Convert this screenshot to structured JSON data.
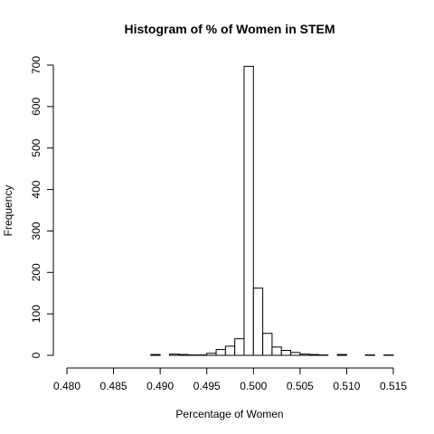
{
  "chart_data": {
    "type": "bar",
    "title": "Histogram of % of Women in STEM",
    "xlabel": "Percentage of Women",
    "ylabel": "Frequency",
    "xlim": [
      0.48,
      0.515
    ],
    "ylim": [
      0,
      700
    ],
    "x_ticks": [
      "0.480",
      "0.485",
      "0.490",
      "0.495",
      "0.500",
      "0.505",
      "0.510",
      "0.515"
    ],
    "y_ticks": [
      "0",
      "100",
      "200",
      "300",
      "400",
      "500",
      "600",
      "700"
    ],
    "bins": [
      {
        "x0": 0.48,
        "x1": 0.481,
        "count": 0
      },
      {
        "x0": 0.481,
        "x1": 0.482,
        "count": 0
      },
      {
        "x0": 0.482,
        "x1": 0.483,
        "count": 0
      },
      {
        "x0": 0.483,
        "x1": 0.484,
        "count": 0
      },
      {
        "x0": 0.484,
        "x1": 0.485,
        "count": 0
      },
      {
        "x0": 0.485,
        "x1": 0.486,
        "count": 0
      },
      {
        "x0": 0.486,
        "x1": 0.487,
        "count": 0
      },
      {
        "x0": 0.487,
        "x1": 0.488,
        "count": 0
      },
      {
        "x0": 0.488,
        "x1": 0.489,
        "count": 0
      },
      {
        "x0": 0.489,
        "x1": 0.49,
        "count": 2
      },
      {
        "x0": 0.49,
        "x1": 0.491,
        "count": 0
      },
      {
        "x0": 0.491,
        "x1": 0.492,
        "count": 3
      },
      {
        "x0": 0.492,
        "x1": 0.493,
        "count": 2
      },
      {
        "x0": 0.493,
        "x1": 0.494,
        "count": 1
      },
      {
        "x0": 0.494,
        "x1": 0.495,
        "count": 1
      },
      {
        "x0": 0.495,
        "x1": 0.496,
        "count": 5
      },
      {
        "x0": 0.496,
        "x1": 0.497,
        "count": 14
      },
      {
        "x0": 0.497,
        "x1": 0.498,
        "count": 22
      },
      {
        "x0": 0.498,
        "x1": 0.499,
        "count": 40
      },
      {
        "x0": 0.499,
        "x1": 0.5,
        "count": 697
      },
      {
        "x0": 0.5,
        "x1": 0.501,
        "count": 162
      },
      {
        "x0": 0.501,
        "x1": 0.502,
        "count": 53
      },
      {
        "x0": 0.502,
        "x1": 0.503,
        "count": 20
      },
      {
        "x0": 0.503,
        "x1": 0.504,
        "count": 12
      },
      {
        "x0": 0.504,
        "x1": 0.505,
        "count": 7
      },
      {
        "x0": 0.505,
        "x1": 0.506,
        "count": 3
      },
      {
        "x0": 0.506,
        "x1": 0.507,
        "count": 2
      },
      {
        "x0": 0.507,
        "x1": 0.508,
        "count": 1
      },
      {
        "x0": 0.508,
        "x1": 0.509,
        "count": 0
      },
      {
        "x0": 0.509,
        "x1": 0.51,
        "count": 2
      },
      {
        "x0": 0.51,
        "x1": 0.511,
        "count": 0
      },
      {
        "x0": 0.511,
        "x1": 0.512,
        "count": 0
      },
      {
        "x0": 0.512,
        "x1": 0.513,
        "count": 1
      },
      {
        "x0": 0.513,
        "x1": 0.514,
        "count": 0
      },
      {
        "x0": 0.514,
        "x1": 0.515,
        "count": 1
      }
    ],
    "grid": false,
    "bar_fill": "#ffffff",
    "bar_stroke": "#000000"
  }
}
